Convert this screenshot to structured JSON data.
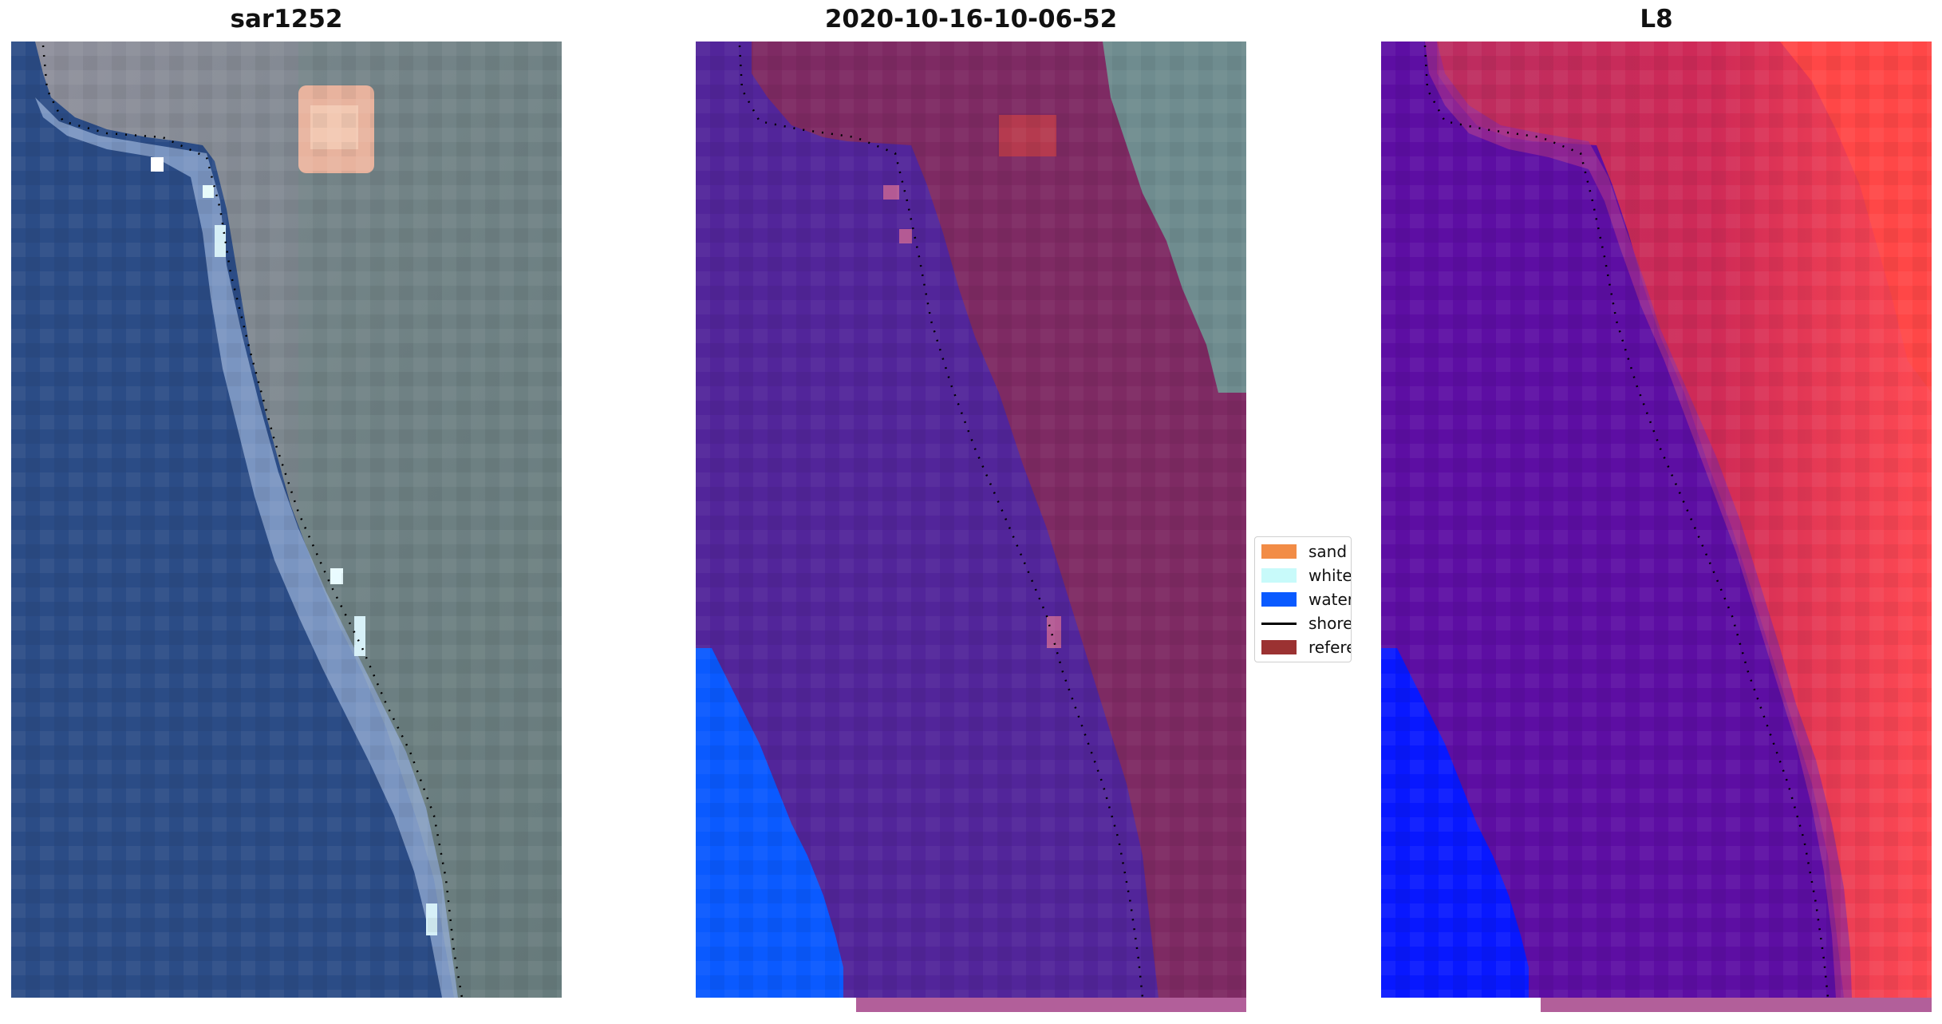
{
  "figure": {
    "panels": [
      {
        "id": "rgb",
        "title": "sar1252"
      },
      {
        "id": "classified",
        "title": "2020-10-16-10-06-52"
      },
      {
        "id": "index",
        "title": "L8"
      }
    ],
    "legend": {
      "items": [
        {
          "label": "sand",
          "color": "#f28c46",
          "kind": "patch"
        },
        {
          "label": "whitewater",
          "color": "#c8fafa",
          "kind": "patch"
        },
        {
          "label": "water",
          "color": "#0a5aff",
          "kind": "patch"
        },
        {
          "label": "shoreline",
          "color": "#000000",
          "kind": "line"
        },
        {
          "label": "reference",
          "color": "#9b3232",
          "kind": "patch"
        }
      ]
    },
    "colors": {
      "sea_rgb": "#2b4c86",
      "land_rgb": "#6f7d82",
      "classified_water": "#52259a",
      "classified_land": "#7e2a63",
      "classified_deep_water": "#0a5aff",
      "index_water": "#5d0ea3",
      "index_land": "#cc2757",
      "index_deep_water": "#0818ff",
      "bottom_strip": "#b25f9a"
    }
  }
}
